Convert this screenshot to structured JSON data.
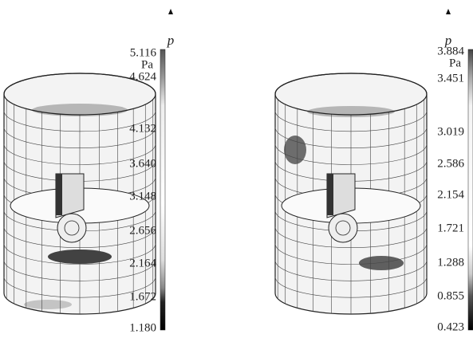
{
  "panels": [
    {
      "symbol": "p",
      "unit": "Pa",
      "ticks": [
        "5.116",
        "4.624",
        "4.132",
        "3.640",
        "3.148",
        "2.656",
        "2.164",
        "1.672",
        "1.180"
      ]
    },
    {
      "symbol": "p",
      "unit": "Pa",
      "ticks": [
        "3.884",
        "3.451",
        "3.019",
        "2.586",
        "2.154",
        "1.721",
        "1.288",
        "0.855",
        "0.423"
      ]
    }
  ]
}
